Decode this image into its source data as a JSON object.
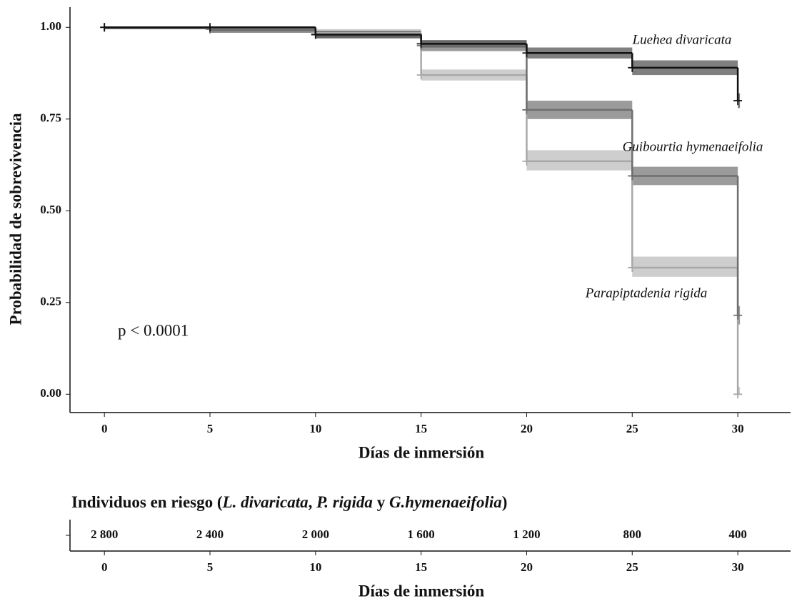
{
  "chart_data": {
    "type": "step",
    "xlabel": "Días de inmersión",
    "ylabel": "Probabilidad de sobrevivencia",
    "x": [
      0,
      5,
      10,
      15,
      20,
      25,
      30
    ],
    "xlim": [
      -1.63,
      32.5
    ],
    "ylim": [
      -0.05,
      1.055
    ],
    "xticks": [
      0,
      5,
      10,
      15,
      20,
      25,
      30
    ],
    "yticks": [
      {
        "value": 0,
        "label": "0.00"
      },
      {
        "value": 0.25,
        "label": "0.25"
      },
      {
        "value": 0.5,
        "label": "0.50"
      },
      {
        "value": 0.75,
        "label": "0.75"
      },
      {
        "value": 1,
        "label": "1.00"
      }
    ],
    "annotation": "p < 0.0001",
    "series": [
      {
        "name": "Luehea divaricata",
        "color": "#111111",
        "band_color": "#555555",
        "values": [
          1.0,
          1.0,
          0.98,
          0.955,
          0.93,
          0.89,
          0.8
        ],
        "lower": [
          0.995,
          0.99,
          0.97,
          0.945,
          0.915,
          0.87,
          0.78
        ],
        "upper": [
          1.0,
          1.0,
          0.99,
          0.965,
          0.945,
          0.91,
          0.82
        ]
      },
      {
        "name": "Guibourtia hymenaeifolia",
        "color": "#6e6e6e",
        "band_color": "#7a7a7a",
        "values": [
          1.0,
          0.995,
          0.98,
          0.95,
          0.775,
          0.595,
          0.215
        ],
        "lower": [
          0.995,
          0.985,
          0.97,
          0.935,
          0.75,
          0.57,
          0.19
        ],
        "upper": [
          1.0,
          1.0,
          0.99,
          0.965,
          0.8,
          0.62,
          0.24
        ]
      },
      {
        "name": "Parapiptadenia rigida",
        "color": "#a8a8a8",
        "band_color": "#bdbdbd",
        "values": [
          1.0,
          0.995,
          0.985,
          0.87,
          0.635,
          0.345,
          0.0
        ],
        "lower": [
          0.995,
          0.985,
          0.975,
          0.855,
          0.61,
          0.32,
          0.0
        ],
        "upper": [
          1.0,
          1.0,
          0.995,
          0.885,
          0.665,
          0.375,
          0.02
        ]
      }
    ]
  },
  "risk_table": {
    "title_parts": [
      "Individuos en riesgo  (",
      "L. divaricata",
      ",  ",
      "P. rigida",
      " y ",
      "G.hymenaeifolia",
      ")"
    ],
    "values": [
      2800,
      2400,
      2000,
      1600,
      1200,
      800,
      400
    ],
    "value_labels": [
      "2 800",
      "2 400",
      "2 000",
      "1 600",
      "1 200",
      "800",
      "400"
    ],
    "xticks": [
      0,
      5,
      10,
      15,
      20,
      25,
      30
    ],
    "xlabel": "Días de inmersión"
  }
}
